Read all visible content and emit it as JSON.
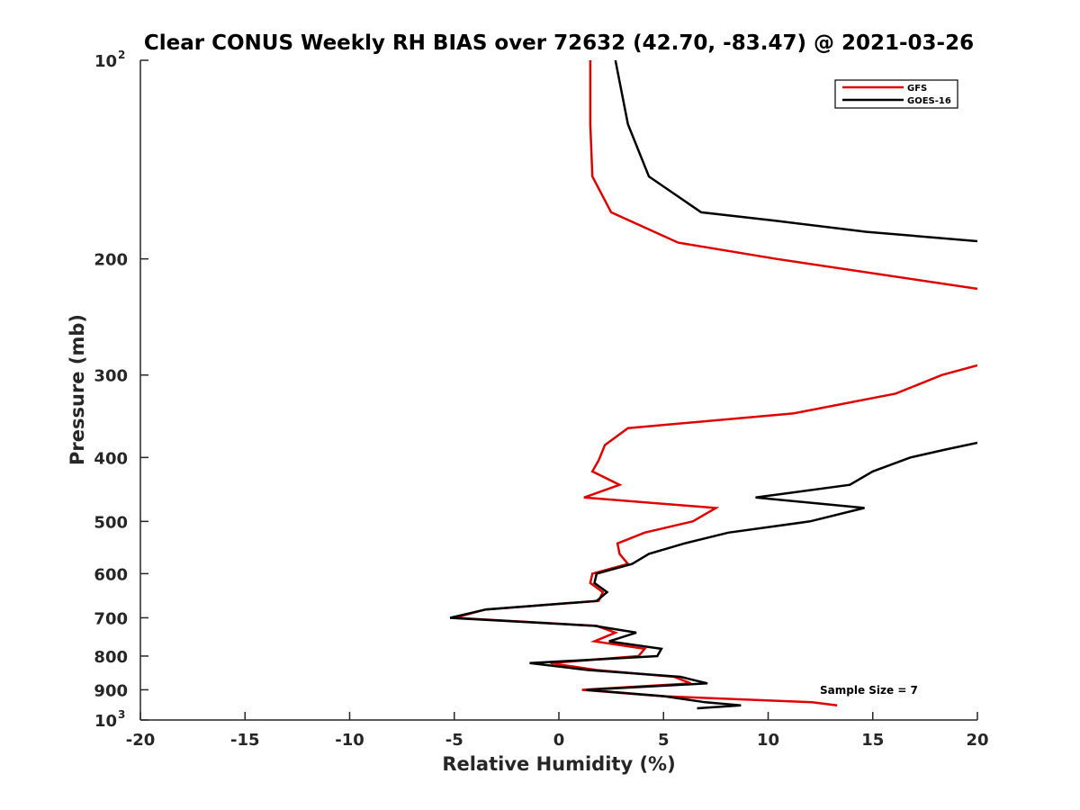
{
  "chart_data": {
    "type": "line",
    "title": "Clear CONUS Weekly RH BIAS over 72632 (42.70, -83.47) @ 2021-03-26",
    "xlabel": "Relative Humidity (%)",
    "ylabel": "Pressure (mb)",
    "xlim": [
      -20,
      20
    ],
    "ylim": [
      100,
      1000
    ],
    "y_scale": "log",
    "y_reversed": true,
    "grid": false,
    "legend_position": "top-right",
    "x_ticks": [
      "-20",
      "-15",
      "-10",
      "-5",
      "0",
      "5",
      "10",
      "15",
      "20"
    ],
    "y_ticks": [
      {
        "base": "10",
        "exp": "2",
        "value": 100
      },
      {
        "label": "200",
        "value": 200
      },
      {
        "label": "300",
        "value": 300
      },
      {
        "label": "400",
        "value": 400
      },
      {
        "label": "500",
        "value": 500
      },
      {
        "label": "600",
        "value": 600
      },
      {
        "label": "700",
        "value": 700
      },
      {
        "label": "800",
        "value": 800
      },
      {
        "label": "900",
        "value": 900
      },
      {
        "base": "10",
        "exp": "3",
        "value": 1000
      }
    ],
    "annotation": "Sample Size = 7",
    "series": [
      {
        "name": "GFS",
        "color": "#e00000",
        "points": [
          [
            1.5,
            100
          ],
          [
            1.5,
            125
          ],
          [
            1.6,
            150
          ],
          [
            2.5,
            170
          ],
          [
            5.7,
            189
          ],
          [
            10.4,
            200
          ],
          [
            20,
            222
          ],
          null,
          [
            20,
            290
          ],
          [
            18.3,
            300
          ],
          [
            16.1,
            320
          ],
          [
            11.2,
            343
          ],
          [
            3.3,
            361
          ],
          [
            2.2,
            383
          ],
          [
            1.9,
            404
          ],
          [
            1.6,
            420
          ],
          [
            2.9,
            440
          ],
          [
            1.2,
            460
          ],
          [
            7.5,
            477
          ],
          [
            6.4,
            500
          ],
          [
            4.1,
            520
          ],
          [
            2.8,
            540
          ],
          [
            2.9,
            560
          ],
          [
            3.3,
            580
          ],
          [
            1.6,
            600
          ],
          [
            1.5,
            620
          ],
          [
            2.1,
            640
          ],
          [
            1.9,
            660
          ],
          [
            -3.5,
            680
          ],
          [
            -5.0,
            700
          ],
          [
            1.8,
            720
          ],
          [
            2.7,
            737
          ],
          [
            1.7,
            760
          ],
          [
            4.1,
            780
          ],
          [
            3.8,
            800
          ],
          [
            -0.4,
            820
          ],
          [
            1.8,
            840
          ],
          [
            5.5,
            860
          ],
          [
            6.3,
            880
          ],
          [
            1.1,
            900
          ],
          [
            4.9,
            920
          ],
          [
            12.1,
            940
          ],
          [
            13.3,
            950
          ]
        ]
      },
      {
        "name": "GOES-16",
        "color": "#000000",
        "points": [
          [
            2.7,
            100
          ],
          [
            3.3,
            125
          ],
          [
            4.3,
            150
          ],
          [
            6.8,
            170
          ],
          [
            10.3,
            175
          ],
          [
            14.7,
            182
          ],
          [
            20,
            188
          ],
          null,
          [
            20,
            380
          ],
          [
            18.5,
            389
          ],
          [
            16.8,
            400
          ],
          [
            15.0,
            420
          ],
          [
            13.9,
            440
          ],
          [
            9.4,
            460
          ],
          [
            14.6,
            477
          ],
          [
            12.0,
            500
          ],
          [
            8.1,
            520
          ],
          [
            6.0,
            540
          ],
          [
            4.3,
            560
          ],
          [
            3.5,
            580
          ],
          [
            1.8,
            600
          ],
          [
            1.7,
            620
          ],
          [
            2.3,
            640
          ],
          [
            1.8,
            660
          ],
          [
            -3.5,
            680
          ],
          [
            -5.2,
            700
          ],
          [
            1.7,
            720
          ],
          [
            3.7,
            737
          ],
          [
            2.4,
            760
          ],
          [
            4.9,
            780
          ],
          [
            4.7,
            800
          ],
          [
            -1.4,
            820
          ],
          [
            1.4,
            840
          ],
          [
            5.8,
            860
          ],
          [
            7.1,
            880
          ],
          [
            1.3,
            900
          ],
          [
            5.0,
            920
          ],
          [
            7.0,
            940
          ],
          [
            8.7,
            950
          ],
          [
            6.6,
            960
          ]
        ]
      }
    ]
  }
}
